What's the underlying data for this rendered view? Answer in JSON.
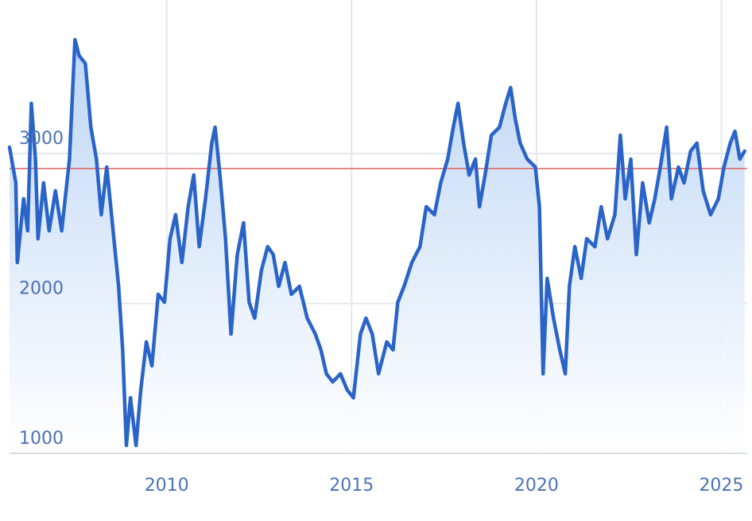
{
  "chart_data": {
    "type": "line",
    "color": "#2a64c8",
    "grid": true,
    "hline": 2900,
    "hline_color": "#e06060",
    "xlim": [
      2005.75,
      2025.7
    ],
    "xticks": [
      2010,
      2015,
      2020,
      2025
    ],
    "ylim": [
      1000,
      4000
    ],
    "yticks": [
      1000,
      2000,
      3000
    ],
    "x": [
      2005.75,
      2005.92,
      2005.96,
      2006.13,
      2006.24,
      2006.34,
      2006.45,
      2006.52,
      2006.67,
      2006.82,
      2006.99,
      2007.16,
      2007.37,
      2007.52,
      2007.63,
      2007.8,
      2007.95,
      2008.1,
      2008.23,
      2008.38,
      2008.53,
      2008.7,
      2008.81,
      2008.91,
      2009.02,
      2009.17,
      2009.3,
      2009.45,
      2009.6,
      2009.77,
      2009.94,
      2010.09,
      2010.24,
      2010.41,
      2010.58,
      2010.73,
      2010.88,
      2011.05,
      2011.22,
      2011.31,
      2011.44,
      2011.59,
      2011.74,
      2011.91,
      2012.08,
      2012.23,
      2012.38,
      2012.56,
      2012.73,
      2012.88,
      2013.03,
      2013.2,
      2013.37,
      2013.59,
      2013.8,
      2014.02,
      2014.17,
      2014.32,
      2014.49,
      2014.7,
      2014.88,
      2015.05,
      2015.24,
      2015.39,
      2015.56,
      2015.73,
      2015.95,
      2016.12,
      2016.25,
      2016.42,
      2016.63,
      2016.85,
      2017.02,
      2017.24,
      2017.41,
      2017.6,
      2017.75,
      2017.88,
      2018.03,
      2018.18,
      2018.35,
      2018.46,
      2018.61,
      2018.78,
      2019.0,
      2019.17,
      2019.3,
      2019.43,
      2019.56,
      2019.75,
      2019.97,
      2020.08,
      2020.18,
      2020.29,
      2020.46,
      2020.63,
      2020.78,
      2020.89,
      2021.04,
      2021.21,
      2021.36,
      2021.58,
      2021.75,
      2021.92,
      2022.12,
      2022.27,
      2022.4,
      2022.55,
      2022.7,
      2022.87,
      2023.05,
      2023.2,
      2023.35,
      2023.52,
      2023.65,
      2023.84,
      2023.99,
      2024.17,
      2024.34,
      2024.51,
      2024.71,
      2024.92,
      2025.07,
      2025.24,
      2025.37,
      2025.5,
      2025.63
    ],
    "values": [
      3042,
      2804,
      2273,
      2698,
      2485,
      3334,
      2963,
      2432,
      2804,
      2485,
      2751,
      2485,
      2963,
      3759,
      3653,
      3600,
      3175,
      2963,
      2592,
      2910,
      2538,
      2114,
      1690,
      1053,
      1371,
      1053,
      1424,
      1743,
      1584,
      2061,
      2008,
      2432,
      2592,
      2273,
      2645,
      2857,
      2379,
      2698,
      3069,
      3175,
      2857,
      2432,
      1796,
      2326,
      2538,
      2008,
      1902,
      2220,
      2379,
      2326,
      2114,
      2273,
      2061,
      2114,
      1902,
      1796,
      1690,
      1531,
      1477,
      1531,
      1424,
      1371,
      1796,
      1902,
      1796,
      1531,
      1743,
      1690,
      2008,
      2114,
      2273,
      2379,
      2645,
      2592,
      2804,
      2963,
      3175,
      3334,
      3069,
      2857,
      2963,
      2645,
      2857,
      3122,
      3175,
      3334,
      3440,
      3228,
      3069,
      2963,
      2910,
      2645,
      1531,
      2167,
      1902,
      1690,
      1531,
      2114,
      2379,
      2167,
      2432,
      2379,
      2645,
      2432,
      2592,
      3122,
      2698,
      2963,
      2326,
      2804,
      2538,
      2698,
      2910,
      3175,
      2698,
      2910,
      2804,
      3016,
      3069,
      2751,
      2592,
      2698,
      2910,
      3069,
      3148,
      2963,
      3016
    ]
  }
}
